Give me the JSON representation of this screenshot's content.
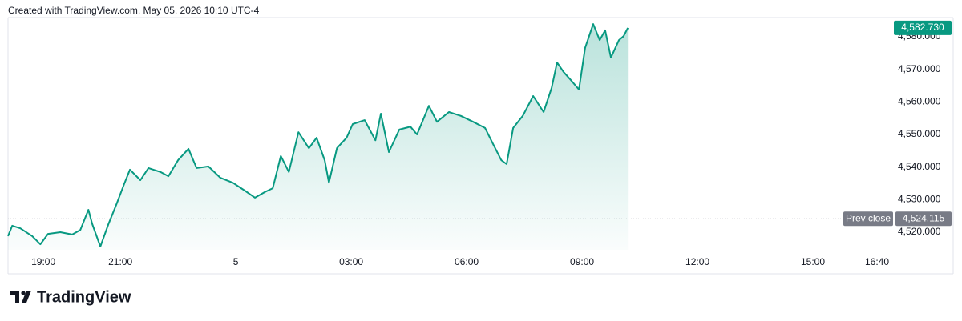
{
  "chart_data": {
    "type": "line",
    "title": "Created with TradingView.com, May 05, 2026 10:10 UTC-4",
    "x": [
      -5.92,
      -5.81,
      -5.6,
      -5.29,
      -5.08,
      -4.88,
      -4.56,
      -4.25,
      -4.04,
      -3.83,
      -3.73,
      -3.52,
      -3.31,
      -3.1,
      -2.9,
      -2.75,
      -2.48,
      -2.27,
      -1.96,
      -1.75,
      -1.5,
      -1.23,
      -1.02,
      -0.71,
      -0.4,
      -0.08,
      0.23,
      0.5,
      0.75,
      0.96,
      1.17,
      1.38,
      1.63,
      1.9,
      2.1,
      2.31,
      2.42,
      2.63,
      2.88,
      3.04,
      3.35,
      3.63,
      3.77,
      3.98,
      4.25,
      4.54,
      4.71,
      5.02,
      5.23,
      5.54,
      5.85,
      6.17,
      6.48,
      6.69,
      6.9,
      7.04,
      7.21,
      7.46,
      7.73,
      8,
      8.21,
      8.35,
      8.52,
      8.71,
      8.92,
      9.08,
      9.29,
      9.46,
      9.6,
      9.75,
      9.96,
      10.08,
      10.19
    ],
    "series": [
      {
        "color": "#089981",
        "values": [
          4518.8,
          4522,
          4521.2,
          4518.8,
          4516.3,
          4519.5,
          4520,
          4519.3,
          4520.7,
          4526.9,
          4522.5,
          4515.6,
          4522.5,
          4528.6,
          4534.8,
          4539.2,
          4536,
          4539.7,
          4538.5,
          4537.2,
          4542.1,
          4545.6,
          4539.7,
          4540.2,
          4536.7,
          4535.2,
          4532.8,
          4530.6,
          4532.3,
          4533.5,
          4543.4,
          4538.5,
          4550.7,
          4545.8,
          4549,
          4542.1,
          4535.2,
          4545.8,
          4549,
          4553.2,
          4554.4,
          4548.2,
          4556.4,
          4544.6,
          4551.5,
          4552.4,
          4550,
          4558.8,
          4553.9,
          4556.9,
          4555.7,
          4553.9,
          4552,
          4547,
          4542.1,
          4540.9,
          4552,
          4555.7,
          4561.8,
          4556.9,
          4564.3,
          4572.1,
          4569.2,
          4566.7,
          4563.8,
          4576.6,
          4583.9,
          4579,
          4582,
          4573.6,
          4579,
          4580.2,
          4582.73
        ]
      }
    ],
    "xlim": [
      -5.92,
      17
    ],
    "xticks": [
      {
        "value": -5,
        "label": "19:00"
      },
      {
        "value": -3,
        "label": "21:00"
      },
      {
        "value": 0,
        "label": "5"
      },
      {
        "value": 3,
        "label": "03:00"
      },
      {
        "value": 6,
        "label": "06:00"
      },
      {
        "value": 9,
        "label": "09:00"
      },
      {
        "value": 12,
        "label": "12:00"
      },
      {
        "value": 15,
        "label": "15:00"
      },
      {
        "value": 16.667,
        "label": "16:40"
      }
    ],
    "ylim": [
      4514.6,
      4585.9
    ],
    "yticks": [
      {
        "value": 4520,
        "label": "4,520.000"
      },
      {
        "value": 4530,
        "label": "4,530.000"
      },
      {
        "value": 4540,
        "label": "4,540.000"
      },
      {
        "value": 4550,
        "label": "4,550.000"
      },
      {
        "value": 4560,
        "label": "4,560.000"
      },
      {
        "value": 4570,
        "label": "4,570.000"
      },
      {
        "value": 4580,
        "label": "4,580.000"
      }
    ],
    "grid": false,
    "last_price": {
      "value": 4582.73,
      "label": "4,582.730"
    },
    "prev_close": {
      "name": "Prev close",
      "value": 4524.115,
      "label": "4,524.115"
    }
  },
  "branding": "TradingView"
}
